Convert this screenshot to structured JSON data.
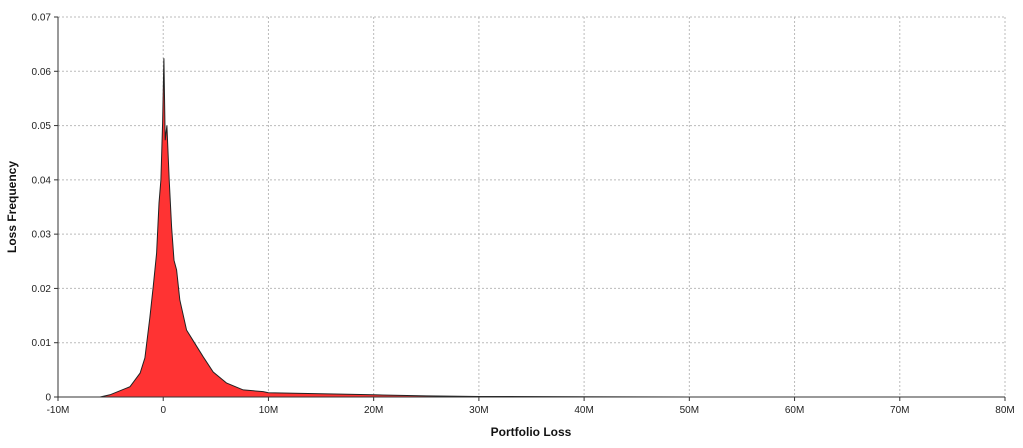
{
  "chart_data": {
    "type": "area",
    "title": "",
    "xlabel": "Portfolio Loss",
    "ylabel": "Loss Frequency",
    "xlim": [
      -10000000,
      80000000
    ],
    "ylim": [
      0,
      0.07
    ],
    "x_ticks": [
      -10000000,
      0,
      10000000,
      20000000,
      30000000,
      40000000,
      50000000,
      60000000,
      70000000,
      80000000
    ],
    "x_tick_labels": [
      "-10M",
      "0",
      "10M",
      "20M",
      "30M",
      "40M",
      "50M",
      "60M",
      "70M",
      "80M"
    ],
    "y_ticks": [
      0,
      0.01,
      0.02,
      0.03,
      0.04,
      0.05,
      0.06,
      0.07
    ],
    "y_tick_labels": [
      "0",
      "0.01",
      "0.02",
      "0.03",
      "0.04",
      "0.05",
      "0.06",
      "0.07"
    ],
    "grid": true,
    "fill_color": "#ff3333",
    "line_color": "#222222",
    "series": [
      {
        "x": [
          -10000000,
          -6000000,
          -5060000,
          -3160000,
          -2200000,
          -1740000,
          -1270000,
          -950000,
          -630000,
          -400000,
          -220000,
          -60000,
          60000,
          190000,
          350000,
          570000,
          800000,
          1020000,
          1270000,
          1580000,
          2220000,
          3000000,
          3800000,
          4750000,
          6000000,
          7600000,
          9500000,
          10000000,
          15000000,
          20000000,
          25000000,
          30000000,
          40000000,
          50000000,
          80000000
        ],
        "y": [
          0,
          0,
          0.0004,
          0.0019,
          0.0044,
          0.0072,
          0.0147,
          0.0203,
          0.0265,
          0.0357,
          0.04,
          0.0505,
          0.0624,
          0.0473,
          0.05,
          0.04,
          0.0313,
          0.0252,
          0.0234,
          0.0179,
          0.0123,
          0.0099,
          0.0074,
          0.0046,
          0.0026,
          0.0013,
          0.001,
          0.0008,
          0.0006,
          0.0004,
          0.0002,
          0.0001,
          5e-05,
          0,
          0
        ]
      }
    ]
  }
}
